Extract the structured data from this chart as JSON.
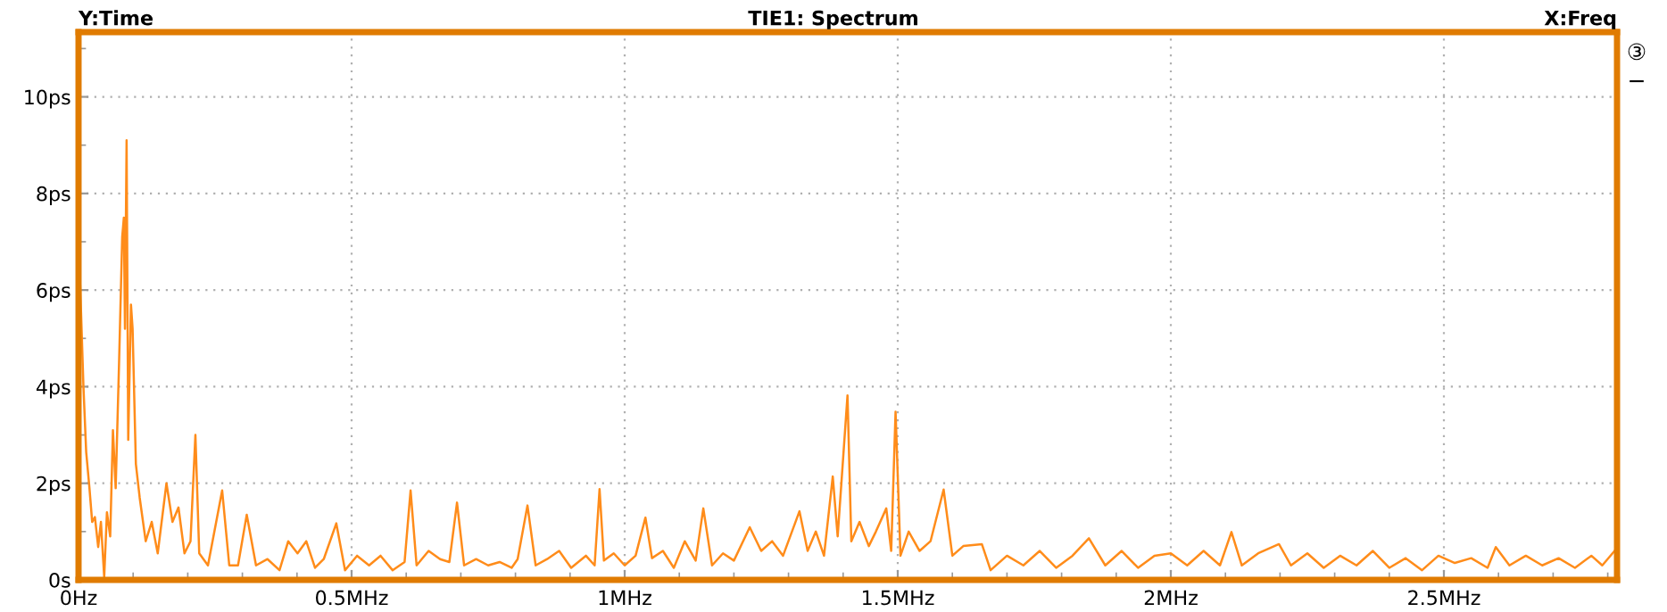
{
  "chart_data": {
    "type": "line",
    "title": "TIE1: Spectrum",
    "xlabel": "X:Freq",
    "ylabel": "Y:Time",
    "annotations": [
      "③",
      "−"
    ],
    "xlim": [
      0,
      2.817
    ],
    "ylim": [
      0,
      11.34
    ],
    "xticks": [
      {
        "value": 0,
        "label": "0Hz"
      },
      {
        "value": 0.1,
        "label": null
      },
      {
        "value": 0.2,
        "label": null
      },
      {
        "value": 0.3,
        "label": null
      },
      {
        "value": 0.4,
        "label": null
      },
      {
        "value": 0.5,
        "label": "0.5MHz"
      },
      {
        "value": 0.6,
        "label": null
      },
      {
        "value": 0.7,
        "label": null
      },
      {
        "value": 0.8,
        "label": null
      },
      {
        "value": 0.9,
        "label": null
      },
      {
        "value": 1,
        "label": "1MHz"
      },
      {
        "value": 1.1,
        "label": null
      },
      {
        "value": 1.2,
        "label": null
      },
      {
        "value": 1.3,
        "label": null
      },
      {
        "value": 1.4,
        "label": null
      },
      {
        "value": 1.5,
        "label": "1.5MHz"
      },
      {
        "value": 1.6,
        "label": null
      },
      {
        "value": 1.7,
        "label": null
      },
      {
        "value": 1.8,
        "label": null
      },
      {
        "value": 1.9,
        "label": null
      },
      {
        "value": 2,
        "label": "2MHz"
      },
      {
        "value": 2.1,
        "label": null
      },
      {
        "value": 2.2,
        "label": null
      },
      {
        "value": 2.3,
        "label": null
      },
      {
        "value": 2.4,
        "label": null
      },
      {
        "value": 2.5,
        "label": "2.5MHz"
      },
      {
        "value": 2.6,
        "label": null
      },
      {
        "value": 2.7,
        "label": null
      },
      {
        "value": 2.8,
        "label": null
      }
    ],
    "yticks": [
      {
        "value": 0,
        "label": "0s"
      },
      {
        "value": 1,
        "label": null
      },
      {
        "value": 2,
        "label": "2ps"
      },
      {
        "value": 3,
        "label": null
      },
      {
        "value": 4,
        "label": "4ps"
      },
      {
        "value": 5,
        "label": null
      },
      {
        "value": 6,
        "label": "6ps"
      },
      {
        "value": 7,
        "label": null
      },
      {
        "value": 8,
        "label": "8ps"
      },
      {
        "value": 9,
        "label": null
      },
      {
        "value": 10,
        "label": "10ps"
      },
      {
        "value": 11,
        "label": null
      }
    ],
    "grid": true,
    "legend": false,
    "marker": "none",
    "line_style": "solid",
    "series": [
      {
        "color": "#ff8c1a",
        "x": [
          0.003,
          0.009,
          0.014,
          0.02,
          0.025,
          0.03,
          0.036,
          0.041,
          0.047,
          0.052,
          0.058,
          0.063,
          0.068,
          0.074,
          0.08,
          0.083,
          0.085,
          0.088,
          0.091,
          0.096,
          0.099,
          0.105,
          0.112,
          0.123,
          0.134,
          0.145,
          0.161,
          0.172,
          0.183,
          0.194,
          0.205,
          0.214,
          0.221,
          0.237,
          0.263,
          0.276,
          0.292,
          0.308,
          0.325,
          0.346,
          0.368,
          0.384,
          0.401,
          0.417,
          0.433,
          0.449,
          0.472,
          0.488,
          0.51,
          0.532,
          0.553,
          0.575,
          0.597,
          0.608,
          0.619,
          0.641,
          0.662,
          0.679,
          0.693,
          0.706,
          0.728,
          0.75,
          0.771,
          0.793,
          0.804,
          0.822,
          0.837,
          0.858,
          0.88,
          0.902,
          0.929,
          0.945,
          0.954,
          0.962,
          0.98,
          1.0,
          1.02,
          1.038,
          1.05,
          1.07,
          1.09,
          1.11,
          1.13,
          1.144,
          1.16,
          1.18,
          1.2,
          1.229,
          1.25,
          1.27,
          1.29,
          1.32,
          1.335,
          1.35,
          1.365,
          1.381,
          1.39,
          1.408,
          1.415,
          1.43,
          1.447,
          1.46,
          1.479,
          1.488,
          1.496,
          1.505,
          1.52,
          1.54,
          1.56,
          1.584,
          1.6,
          1.62,
          1.654,
          1.67,
          1.7,
          1.73,
          1.76,
          1.79,
          1.82,
          1.85,
          1.88,
          1.91,
          1.94,
          1.97,
          2.0,
          2.03,
          2.06,
          2.09,
          2.111,
          2.13,
          2.16,
          2.198,
          2.22,
          2.25,
          2.28,
          2.31,
          2.34,
          2.37,
          2.4,
          2.43,
          2.46,
          2.49,
          2.52,
          2.55,
          2.58,
          2.595,
          2.62,
          2.65,
          2.68,
          2.71,
          2.74,
          2.77,
          2.79,
          2.814
        ],
        "values": [
          6.1,
          4.0,
          2.65,
          1.9,
          1.2,
          1.3,
          0.68,
          1.2,
          0.06,
          1.4,
          0.9,
          3.1,
          1.9,
          4.4,
          7.1,
          7.5,
          5.2,
          9.1,
          2.9,
          5.7,
          5.2,
          2.4,
          1.7,
          0.8,
          1.2,
          0.55,
          2.0,
          1.2,
          1.5,
          0.55,
          0.8,
          3.0,
          0.55,
          0.3,
          1.85,
          0.3,
          0.3,
          1.35,
          0.3,
          0.43,
          0.2,
          0.8,
          0.55,
          0.8,
          0.25,
          0.43,
          1.17,
          0.2,
          0.5,
          0.3,
          0.5,
          0.2,
          0.37,
          1.85,
          0.3,
          0.6,
          0.43,
          0.37,
          1.6,
          0.3,
          0.43,
          0.3,
          0.37,
          0.25,
          0.43,
          1.54,
          0.3,
          0.43,
          0.6,
          0.25,
          0.5,
          0.3,
          1.88,
          0.4,
          0.55,
          0.3,
          0.5,
          1.29,
          0.45,
          0.6,
          0.25,
          0.8,
          0.4,
          1.48,
          0.3,
          0.55,
          0.4,
          1.09,
          0.6,
          0.8,
          0.5,
          1.42,
          0.6,
          1.0,
          0.5,
          2.14,
          0.9,
          3.82,
          0.8,
          1.2,
          0.7,
          1.0,
          1.48,
          0.6,
          3.48,
          0.5,
          1.0,
          0.6,
          0.8,
          1.87,
          0.5,
          0.7,
          0.74,
          0.2,
          0.5,
          0.3,
          0.6,
          0.25,
          0.5,
          0.86,
          0.3,
          0.6,
          0.25,
          0.5,
          0.55,
          0.3,
          0.6,
          0.3,
          0.99,
          0.3,
          0.55,
          0.74,
          0.3,
          0.55,
          0.25,
          0.5,
          0.3,
          0.6,
          0.25,
          0.45,
          0.2,
          0.5,
          0.35,
          0.45,
          0.25,
          0.68,
          0.3,
          0.5,
          0.3,
          0.45,
          0.25,
          0.5,
          0.3,
          0.62
        ]
      }
    ]
  }
}
